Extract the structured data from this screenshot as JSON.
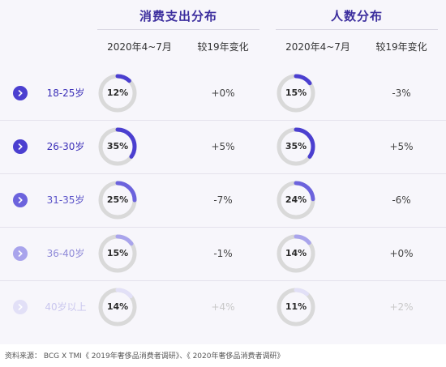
{
  "groups": [
    {
      "title": "消费支出分布",
      "col_share": "2020年4~7月",
      "col_change": "较19年变化"
    },
    {
      "title": "人数分布",
      "col_share": "2020年4~7月",
      "col_change": "较19年变化"
    }
  ],
  "colors": {
    "ring_track": "#d9d9d9",
    "row_accent": [
      "#4b3fd0",
      "#4b3fd0",
      "#6c63dd",
      "#a9a4ec",
      "#e2e0f7"
    ],
    "row_text": [
      "#3c30b8",
      "#3c30b8",
      "#5a52c8",
      "#8f8ad8",
      "#c9c6ee"
    ],
    "title": "#3c2e9e"
  },
  "chart_data": {
    "type": "table",
    "categories": [
      "18-25岁",
      "26-30岁",
      "31-35岁",
      "36-40岁",
      "40岁以上"
    ],
    "series": [
      {
        "name": "消费支出分布",
        "share": [
          12,
          35,
          25,
          15,
          14
        ],
        "share_labels": [
          "12%",
          "35%",
          "25%",
          "15%",
          "14%"
        ],
        "change_labels": [
          "+0%",
          "+5%",
          "-7%",
          "-1%",
          "+4%"
        ]
      },
      {
        "name": "人数分布",
        "share": [
          15,
          35,
          24,
          14,
          11
        ],
        "share_labels": [
          "15%",
          "35%",
          "24%",
          "14%",
          "11%"
        ],
        "change_labels": [
          "-3%",
          "+5%",
          "-6%",
          "+0%",
          "+2%"
        ]
      }
    ]
  },
  "source": "资料来源：  BCG X TMI《 2019年奢侈品消费者调研》、《  2020年奢侈品消费者调研》"
}
